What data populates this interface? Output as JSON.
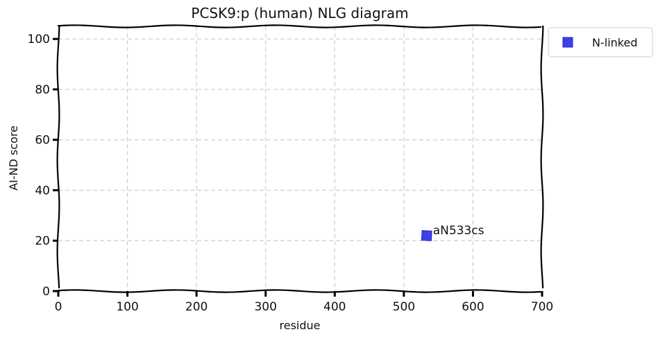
{
  "chart_data": {
    "type": "scatter",
    "title": "PCSK9:p (human) NLG diagram",
    "xlabel": "residue",
    "ylabel": "AI-ND score",
    "xlim": [
      0,
      700
    ],
    "ylim": [
      0,
      105
    ],
    "xticks": [
      0,
      100,
      200,
      300,
      400,
      500,
      600,
      700
    ],
    "yticks": [
      0,
      20,
      40,
      60,
      80,
      100
    ],
    "grid": true,
    "legend_position": "outside-top-right",
    "series": [
      {
        "name": "N-linked",
        "color": "#1f1fe0",
        "marker": "square",
        "points": [
          {
            "x": 533,
            "y": 22,
            "label": "aN533cs"
          }
        ]
      }
    ]
  }
}
